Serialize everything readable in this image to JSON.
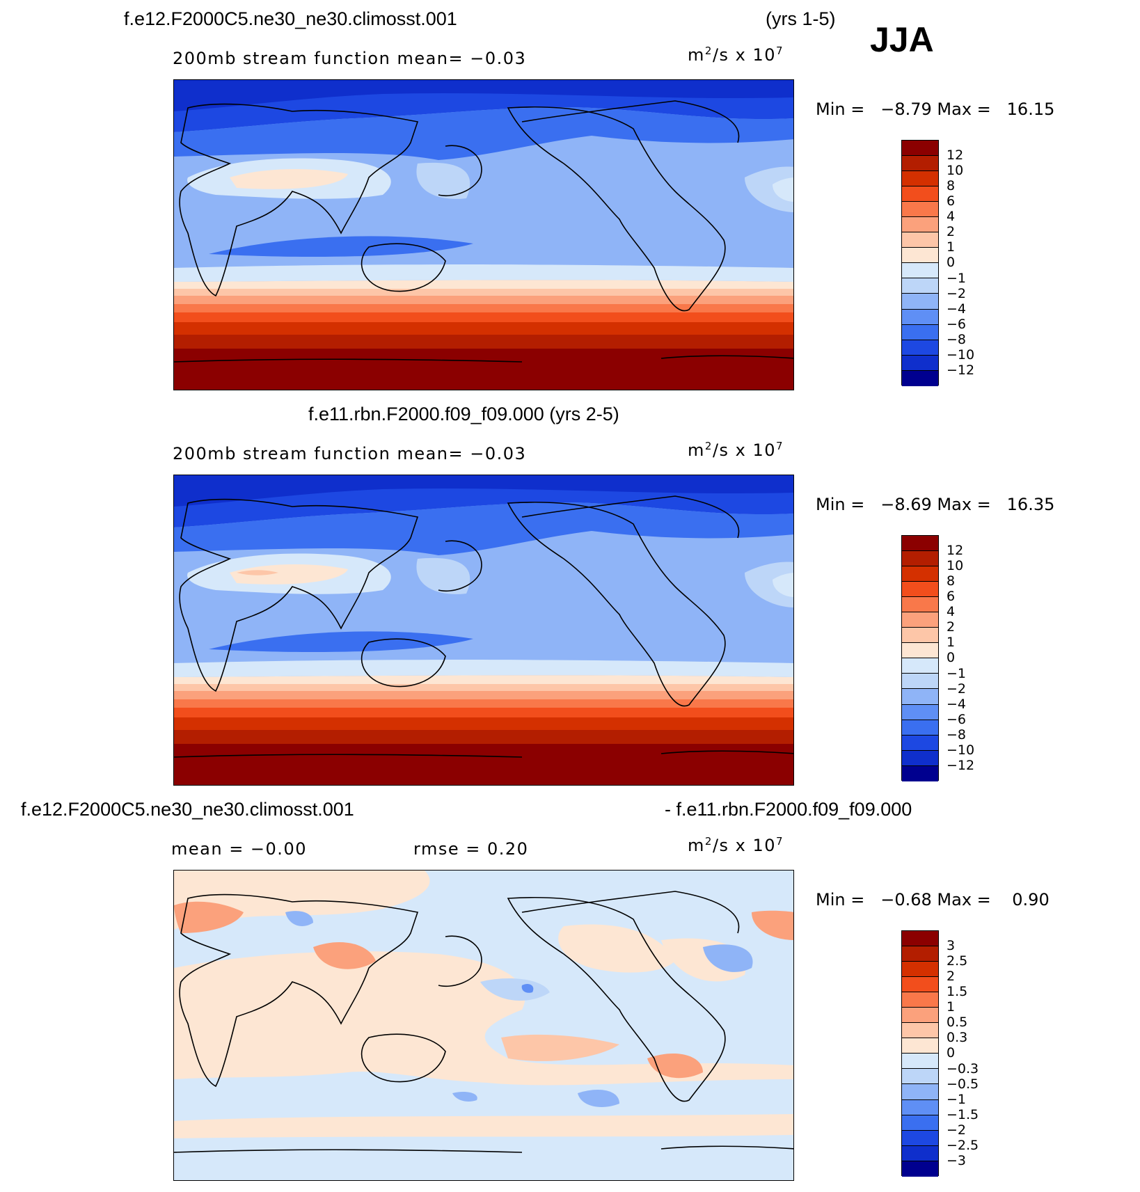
{
  "header": {
    "season": "JJA"
  },
  "panels": [
    {
      "title_left": "f.e12.F2000C5.ne30_ne30.climosst.001",
      "title_right": "(yrs 1-5)",
      "subtitle": "200mb stream function   mean=   −0.03",
      "units_base": "m",
      "units_exp1": "2",
      "units_mid": "/s x 10",
      "units_exp2": "7",
      "min_label": "Min =",
      "min_value": "−8.79",
      "max_label": "Max =",
      "max_value": "16.15",
      "colorbar_ticks": [
        "12",
        "10",
        "8",
        "6",
        "4",
        "2",
        "1",
        "0",
        "−1",
        "−2",
        "−4",
        "−6",
        "−8",
        "−10",
        "−12"
      ]
    },
    {
      "title_center": "f.e11.rbn.F2000.f09_f09.000 (yrs 2-5)",
      "subtitle": "200mb stream function   mean=   −0.03",
      "units_base": "m",
      "units_exp1": "2",
      "units_mid": "/s x 10",
      "units_exp2": "7",
      "min_label": "Min =",
      "min_value": "−8.69",
      "max_label": "Max =",
      "max_value": "16.35",
      "colorbar_ticks": [
        "12",
        "10",
        "8",
        "6",
        "4",
        "2",
        "1",
        "0",
        "−1",
        "−2",
        "−4",
        "−6",
        "−8",
        "−10",
        "−12"
      ]
    },
    {
      "title_left": "f.e12.F2000C5.ne30_ne30.climosst.001",
      "title_right": "- f.e11.rbn.F2000.f09_f09.000",
      "subtitle_left": "mean =   −0.00",
      "subtitle_right": "rmse =    0.20",
      "units_base": "m",
      "units_exp1": "2",
      "units_mid": "/s x 10",
      "units_exp2": "7",
      "min_label": "Min =",
      "min_value": "−0.68",
      "max_label": "Max =",
      "max_value": "0.90",
      "colorbar_ticks": [
        "3",
        "2.5",
        "2",
        "1.5",
        "1",
        "0.5",
        "0.3",
        "0",
        "−0.3",
        "−0.5",
        "−1",
        "−1.5",
        "−2",
        "−2.5",
        "−3"
      ]
    }
  ],
  "colors": {
    "div": [
      "#8b0000",
      "#b31e00",
      "#d43000",
      "#f24e1c",
      "#f9784a",
      "#fba17c",
      "#fdc6a8",
      "#fde6d3",
      "#d6e8fa",
      "#bdd6f8",
      "#8fb4f7",
      "#5f8ff5",
      "#3a6ff0",
      "#1d48e2",
      "#0f2fcc",
      "#0a1ea6",
      "#00008f"
    ]
  }
}
